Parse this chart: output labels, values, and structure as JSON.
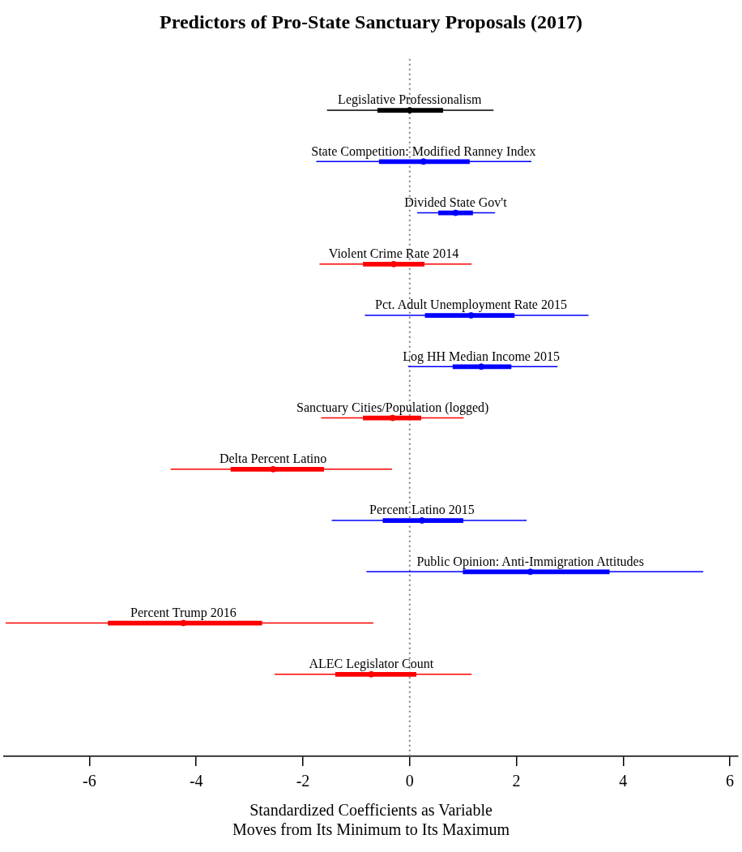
{
  "chart_data": {
    "type": "scatter",
    "orientation": "horizontal",
    "title": "Predictors of Pro-State Sanctuary Proposals (2017)",
    "xlabel": "Standardized Coefficients as Variable\nMoves from Its Minimum to Its Maximum",
    "categories": [
      "Legislative Professionalism",
      "State Competition: Modified Ranney Index",
      "Divided State Gov't",
      "Violent Crime Rate 2014",
      "Pct. Adult Unemployment Rate 2015",
      "Log HH Median Income 2015",
      "Sanctuary Cities/Population (logged)",
      "Delta Percent Latino",
      "Percent Latino 2015",
      "Public Opinion: Anti-Immigration Attitudes",
      "Percent Trump 2016",
      "ALEC Legislator Count"
    ],
    "series": [
      {
        "marker": "circle",
        "colors": [
          "#000000",
          "#0000ff",
          "#0000ff",
          "#ff0000",
          "#0000ff",
          "#0000ff",
          "#ff0000",
          "#ff0000",
          "#0000ff",
          "#0000ff",
          "#ff0000",
          "#ff0000"
        ],
        "values": [
          0,
          0.26,
          0.86,
          -0.3,
          1.15,
          1.34,
          -0.32,
          -2.56,
          0.23,
          2.26,
          -4.24,
          -0.72
        ],
        "errors": [
          [
            -1.55,
            1.57
          ],
          [
            -1.75,
            2.28
          ],
          [
            0.14,
            1.6
          ],
          [
            -1.69,
            1.16
          ],
          [
            -0.84,
            3.35
          ],
          [
            -0.03,
            2.77
          ],
          [
            -1.66,
            1.01
          ],
          [
            -4.48,
            -0.33
          ],
          [
            -1.46,
            2.19
          ],
          [
            -0.81,
            5.5
          ],
          [
            -7.57,
            -0.68
          ],
          [
            -2.53,
            1.16
          ]
        ]
      },
      {
        "type": "bar",
        "colors": [
          "#000000",
          "#0000ff",
          "#0000ff",
          "#ff0000",
          "#0000ff",
          "#0000ff",
          "#ff0000",
          "#ff0000",
          "#0000ff",
          "#0000ff",
          "#ff0000",
          "#ff0000"
        ],
        "base": [
          -0.6,
          -0.57,
          0.54,
          -0.87,
          0.29,
          0.81,
          -0.87,
          -3.35,
          -0.5,
          1.0,
          -5.65,
          -1.39
        ],
        "values": [
          1.22,
          1.69,
          0.64,
          1.14,
          1.67,
          1.09,
          1.08,
          1.74,
          1.5,
          2.74,
          2.88,
          1.51
        ]
      }
    ],
    "xlim": [
      -7.6,
      6.15
    ],
    "xticks": [
      -6,
      -4,
      -2,
      0,
      2,
      4,
      6
    ],
    "tick_labels": "x",
    "grid": false,
    "legend": false,
    "ref_lines": [
      {
        "axis": "x",
        "value": 0,
        "color": "#808080",
        "line_style": "dotted"
      }
    ]
  }
}
